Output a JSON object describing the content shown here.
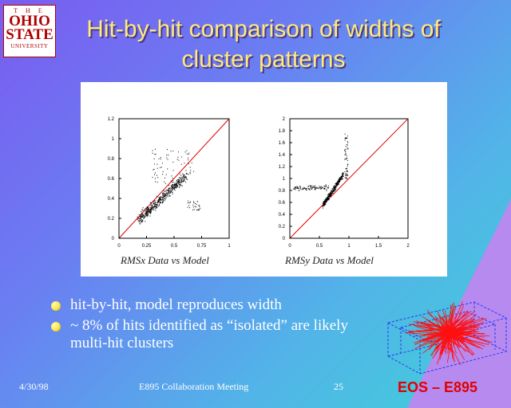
{
  "logo": {
    "line1": "T H E",
    "line2": "OHIO",
    "line3": "STATE",
    "line4": "UNIVERSITY"
  },
  "title": {
    "line1": "Hit-by-hit comparison of widths of",
    "line2": "cluster patterns"
  },
  "plots": [
    {
      "ticks_x": [
        "0",
        "0.25",
        "0.5",
        "0.75",
        "1"
      ],
      "ticks_y": [
        "0",
        "0.2",
        "0.4",
        "0.6",
        "0.8",
        "1",
        "1.2"
      ],
      "xlabel": "RMSx  Data vs Model"
    },
    {
      "ticks_x": [
        "0",
        "0.5",
        "1",
        "1.5",
        "2"
      ],
      "ticks_y": [
        "0",
        "0.2",
        "0.4",
        "0.6",
        "0.8",
        "1",
        "1.2",
        "1.4",
        "1.6",
        "1.8",
        "2"
      ],
      "xlabel": "RMSy  Data vs Model"
    }
  ],
  "bullets": [
    "hit-by-hit, model reproduces width",
    "~ 8% of hits identified as “isolated” are likely multi-hit clusters"
  ],
  "footer": {
    "date": "4/30/98",
    "meeting": "E895 Collaboration Meeting",
    "page": "25"
  },
  "brand": "EOS – E895",
  "colors": {
    "title": "#ffe97a",
    "brand": "#e00000",
    "diagonal": "#e00000"
  }
}
